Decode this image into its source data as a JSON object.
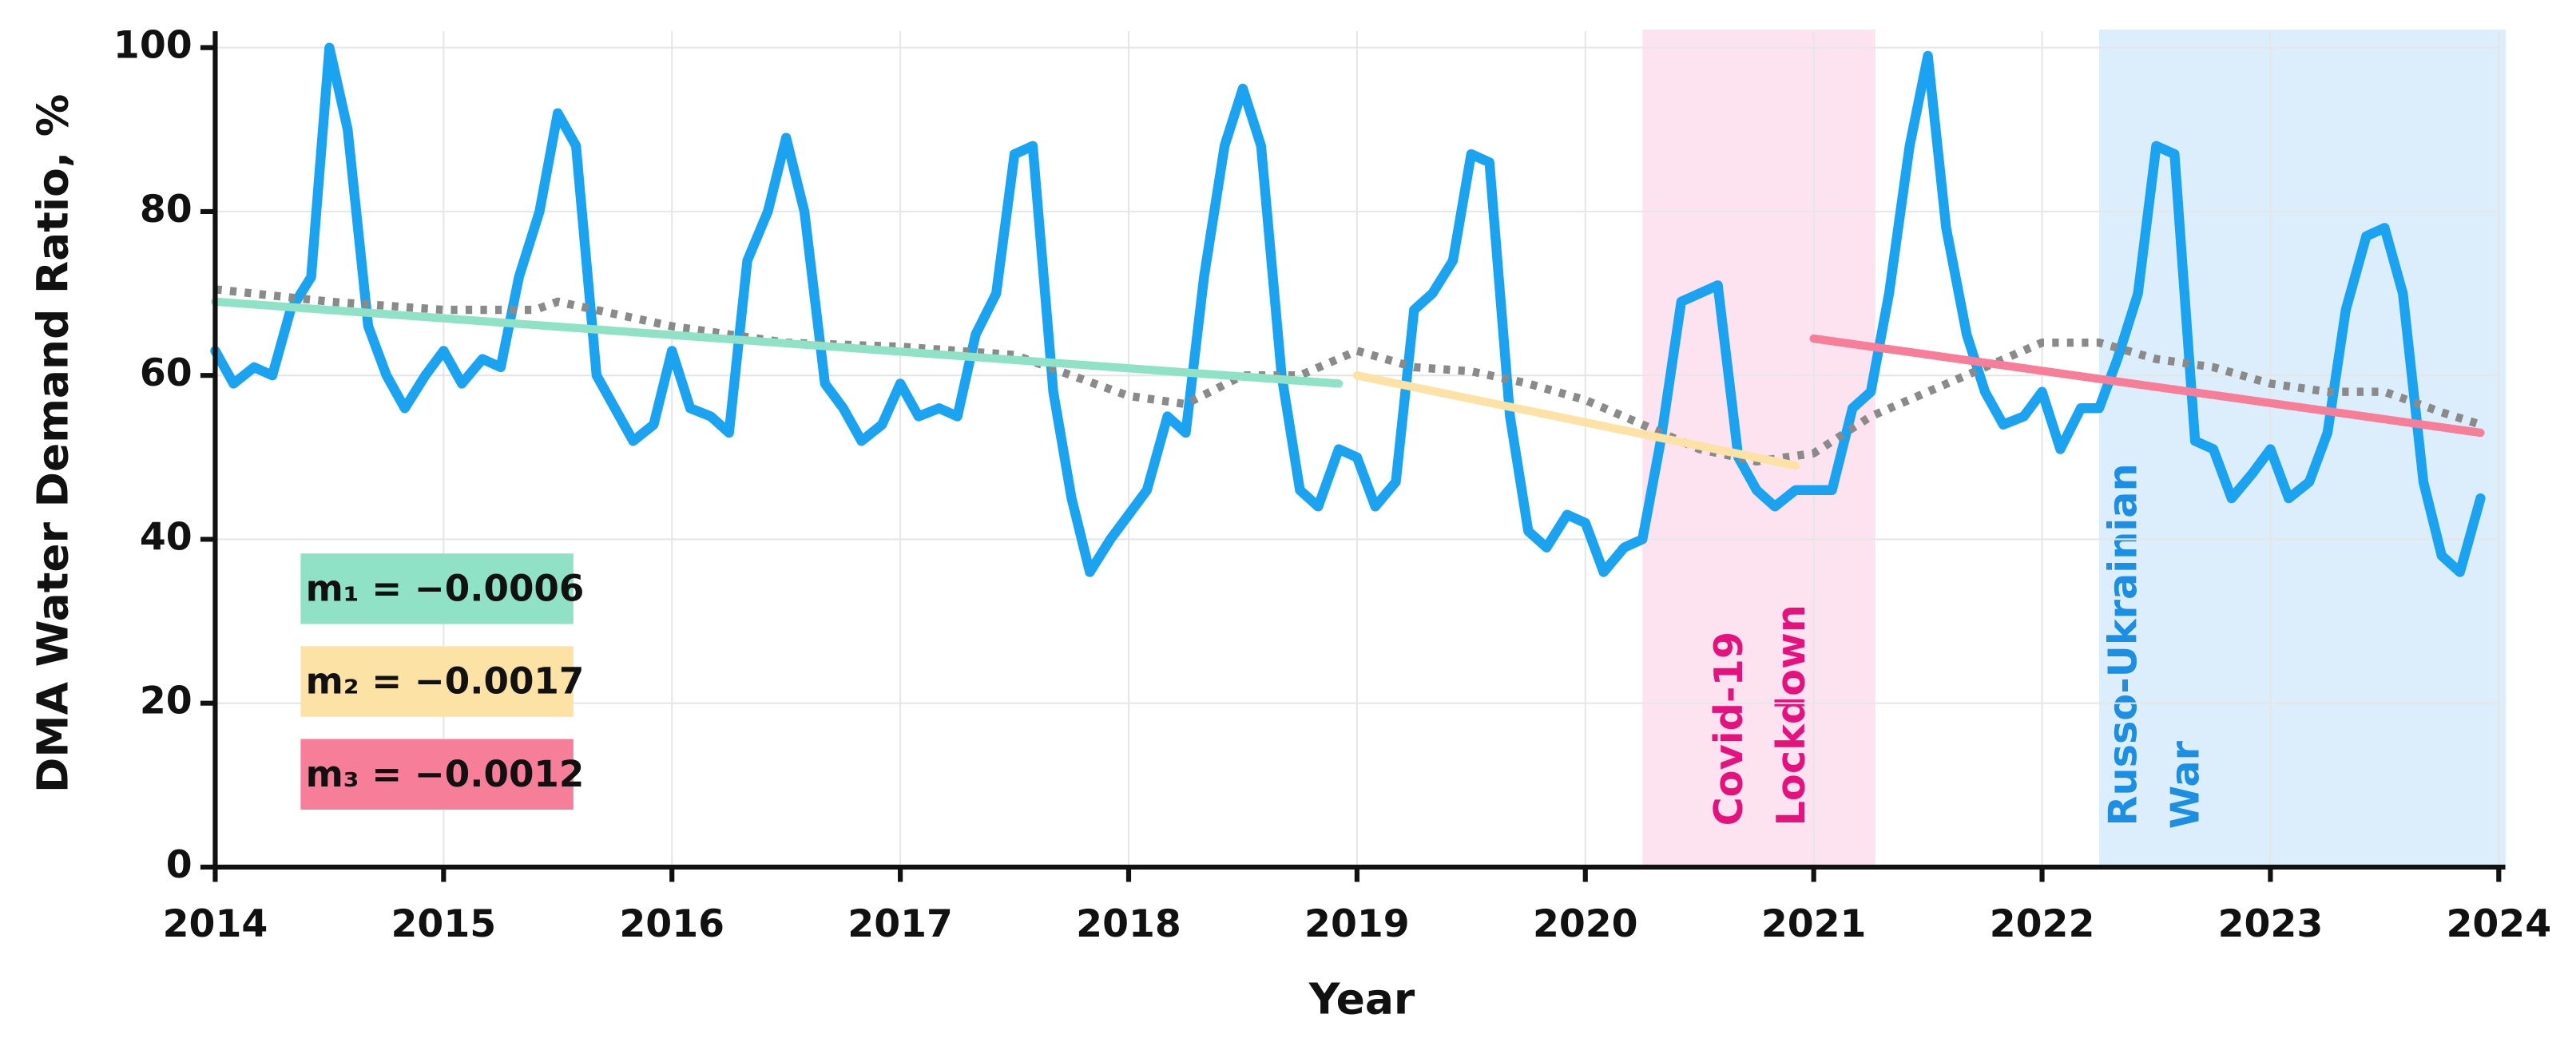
{
  "chart_data": {
    "type": "line",
    "xlabel": "Year",
    "ylabel": "DMA Water Demand Ratio, %",
    "xlim": [
      2014,
      2024
    ],
    "ylim": [
      0,
      102
    ],
    "xticks": [
      2014,
      2015,
      2016,
      2017,
      2018,
      2019,
      2020,
      2021,
      2022,
      2023,
      2024
    ],
    "yticks": [
      0,
      20,
      40,
      60,
      80,
      100
    ],
    "grid": true,
    "spans": [
      {
        "lines": [
          "Covid-19",
          "Lockdown"
        ],
        "xrange": [
          2020.25,
          2021.27
        ],
        "color": "#fde3ef",
        "text_color": "#e5127d"
      },
      {
        "lines": [
          "Russo-Ukrainian",
          "War"
        ],
        "xrange": [
          2022.25,
          2024.03
        ],
        "color": "#dcedfb",
        "text_color": "#1b8fe3"
      }
    ],
    "series": [
      {
        "color": "#1aa3f0",
        "style": "solid",
        "x": [
          2014.0,
          2014.08,
          2014.17,
          2014.25,
          2014.33,
          2014.42,
          2014.5,
          2014.58,
          2014.67,
          2014.75,
          2014.83,
          2014.92,
          2015.0,
          2015.08,
          2015.17,
          2015.25,
          2015.33,
          2015.42,
          2015.5,
          2015.58,
          2015.67,
          2015.75,
          2015.83,
          2015.92,
          2016.0,
          2016.08,
          2016.17,
          2016.25,
          2016.33,
          2016.42,
          2016.5,
          2016.58,
          2016.67,
          2016.75,
          2016.83,
          2016.92,
          2017.0,
          2017.08,
          2017.17,
          2017.25,
          2017.33,
          2017.42,
          2017.5,
          2017.58,
          2017.67,
          2017.75,
          2017.83,
          2017.92,
          2018.0,
          2018.08,
          2018.17,
          2018.25,
          2018.33,
          2018.42,
          2018.5,
          2018.58,
          2018.67,
          2018.75,
          2018.83,
          2018.92,
          2019.0,
          2019.08,
          2019.17,
          2019.25,
          2019.33,
          2019.42,
          2019.5,
          2019.58,
          2019.67,
          2019.75,
          2019.83,
          2019.92,
          2020.0,
          2020.08,
          2020.17,
          2020.25,
          2020.33,
          2020.42,
          2020.5,
          2020.58,
          2020.67,
          2020.75,
          2020.83,
          2020.92,
          2021.0,
          2021.08,
          2021.17,
          2021.25,
          2021.33,
          2021.42,
          2021.5,
          2021.58,
          2021.67,
          2021.75,
          2021.83,
          2021.92,
          2022.0,
          2022.08,
          2022.17,
          2022.25,
          2022.33,
          2022.42,
          2022.5,
          2022.58,
          2022.67,
          2022.75,
          2022.83,
          2022.92,
          2023.0,
          2023.08,
          2023.17,
          2023.25,
          2023.33,
          2023.42,
          2023.5,
          2023.58,
          2023.67,
          2023.75,
          2023.83,
          2023.92
        ],
        "values": [
          63,
          59,
          61,
          60,
          68,
          72,
          100,
          90,
          66,
          60,
          56,
          60,
          63,
          59,
          62,
          61,
          72,
          80,
          92,
          88,
          60,
          56,
          52,
          54,
          63,
          56,
          55,
          53,
          74,
          80,
          89,
          80,
          59,
          56,
          52,
          54,
          59,
          55,
          56,
          55,
          65,
          70,
          87,
          88,
          58,
          45,
          36,
          40,
          43,
          46,
          55,
          53,
          72,
          88,
          95,
          88,
          60,
          46,
          44,
          51,
          50,
          44,
          47,
          68,
          70,
          74,
          87,
          86,
          55,
          41,
          39,
          43,
          42,
          36,
          39,
          40,
          52,
          69,
          70,
          71,
          50,
          46,
          44,
          46,
          46,
          46,
          56,
          58,
          70,
          88,
          99,
          78,
          65,
          58,
          54,
          55,
          58,
          51,
          56,
          56,
          62,
          70,
          88,
          87,
          52,
          51,
          45,
          48,
          51,
          45,
          47,
          53,
          68,
          77,
          78,
          70,
          47,
          38,
          36,
          45
        ]
      },
      {
        "color": "#8a8a8a",
        "style": "dotted",
        "x": [
          2014.0,
          2014.5,
          2015.0,
          2015.4,
          2015.5,
          2016.0,
          2016.5,
          2017.0,
          2017.5,
          2017.75,
          2018.0,
          2018.25,
          2018.5,
          2018.75,
          2019.0,
          2019.25,
          2019.5,
          2019.75,
          2020.0,
          2020.25,
          2020.5,
          2020.75,
          2021.0,
          2021.25,
          2021.5,
          2021.75,
          2022.0,
          2022.25,
          2022.5,
          2022.75,
          2023.0,
          2023.25,
          2023.5,
          2023.75,
          2023.92
        ],
        "values": [
          70.5,
          69,
          68,
          68,
          69,
          66,
          64,
          63.5,
          62.5,
          60,
          57.5,
          56.5,
          60,
          60,
          63,
          61,
          60.5,
          59,
          57,
          54,
          51,
          49.5,
          50.5,
          55,
          58,
          61,
          64,
          64,
          62,
          61,
          59,
          58,
          58,
          55.5,
          54
        ]
      },
      {
        "name": "m₁ = −0.0006",
        "color": "#8fe2c6",
        "style": "trend",
        "x": [
          2014.0,
          2018.92
        ],
        "values": [
          69,
          59
        ]
      },
      {
        "name": "m₂ = −0.0017",
        "color": "#fde2a6",
        "style": "trend",
        "x": [
          2019.0,
          2020.92
        ],
        "values": [
          60,
          49
        ]
      },
      {
        "name": "m₃ = −0.0012",
        "color": "#f67e99",
        "style": "trend",
        "x": [
          2021.0,
          2023.92
        ],
        "values": [
          64.5,
          53
        ]
      }
    ]
  }
}
